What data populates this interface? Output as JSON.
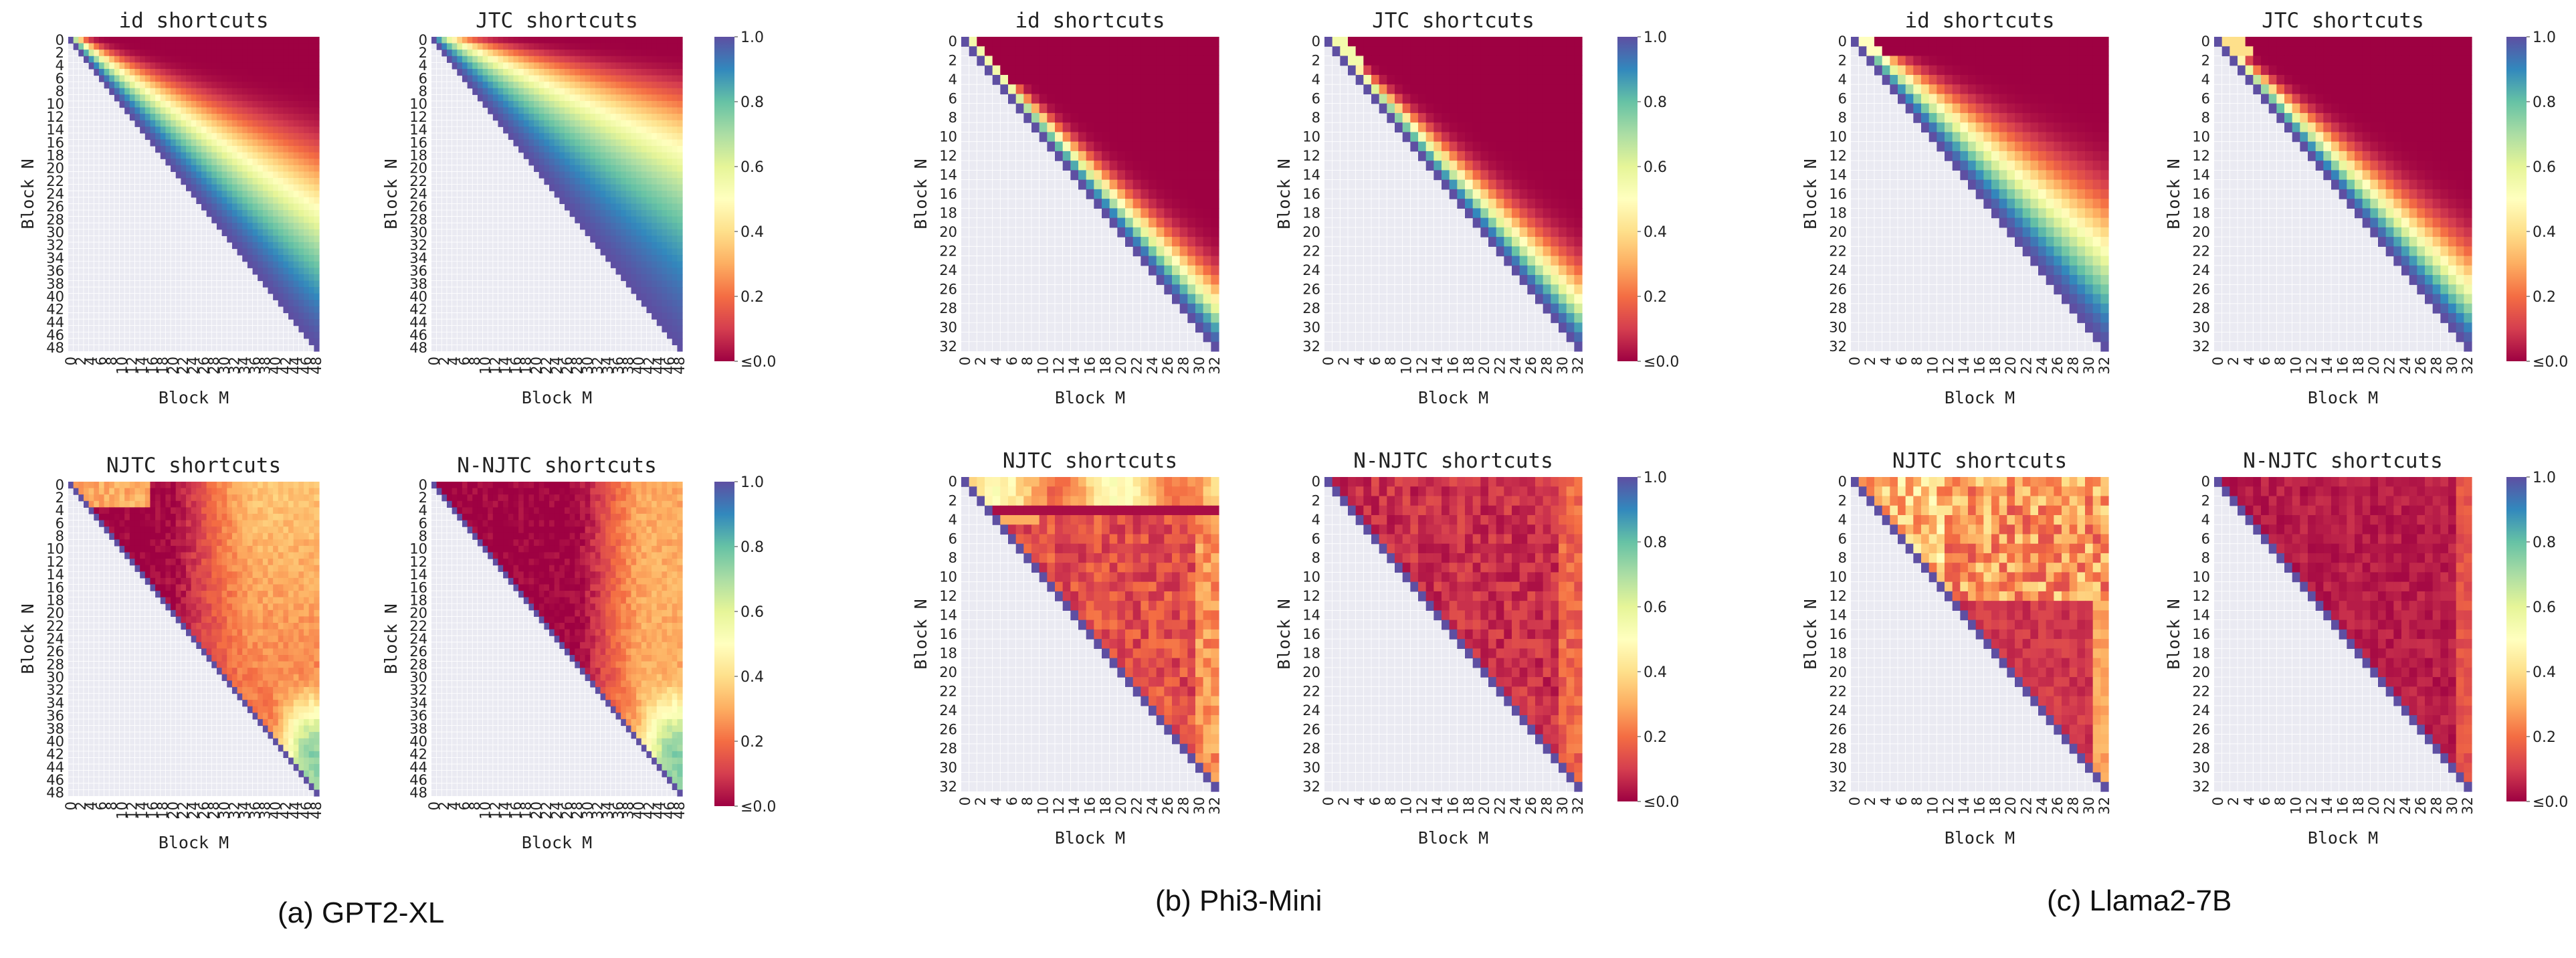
{
  "colors": {
    "scale": [
      "#9e0142",
      "#d53e4f",
      "#f46d43",
      "#fdae61",
      "#fee08b",
      "#ffffbf",
      "#e6f598",
      "#abdda4",
      "#66c2a5",
      "#3288bd",
      "#5e4fa2"
    ],
    "masked": "#eaeaf2",
    "gridline": "#ffffff"
  },
  "captions": {
    "gpt2": "(a) GPT2-XL",
    "phi3": "(b) Phi3-Mini",
    "llama": "(c) Llama2-7B"
  },
  "colorbar_ticks": [
    "1.0",
    "0.8",
    "0.6",
    "0.4",
    "0.2",
    "≤0.0"
  ],
  "chart_data": [
    {
      "type": "heatmap",
      "model": "GPT2-XL",
      "title": "id shortcuts",
      "xlabel": "Block M",
      "ylabel": "Block N",
      "n": 48,
      "x_range": [
        0,
        48
      ],
      "y_range": [
        0,
        48
      ],
      "tick_step": 2,
      "pattern": "id_wide",
      "value_range": [
        0,
        1
      ],
      "description": "upper-triangular shortcut score; 1.0 on diagonal, decaying to <=0 far from diagonal"
    },
    {
      "type": "heatmap",
      "model": "GPT2-XL",
      "title": "JTC shortcuts",
      "xlabel": "Block M",
      "ylabel": "Block N",
      "n": 48,
      "x_range": [
        0,
        48
      ],
      "y_range": [
        0,
        48
      ],
      "tick_step": 2,
      "pattern": "jtc_wide",
      "value_range": [
        0,
        1
      ]
    },
    {
      "type": "heatmap",
      "model": "GPT2-XL",
      "title": "NJTC shortcuts",
      "xlabel": "Block M",
      "ylabel": "Block N",
      "n": 48,
      "x_range": [
        0,
        48
      ],
      "y_range": [
        0,
        48
      ],
      "tick_step": 2,
      "pattern": "njtc_gpt",
      "value_range": [
        0,
        1
      ]
    },
    {
      "type": "heatmap",
      "model": "GPT2-XL",
      "title": "N-NJTC shortcuts",
      "xlabel": "Block M",
      "ylabel": "Block N",
      "n": 48,
      "x_range": [
        0,
        48
      ],
      "y_range": [
        0,
        48
      ],
      "tick_step": 2,
      "pattern": "nnjtc_gpt",
      "value_range": [
        0,
        1
      ]
    },
    {
      "type": "heatmap",
      "model": "Phi3-Mini",
      "title": "id shortcuts",
      "xlabel": "Block M",
      "ylabel": "Block N",
      "n": 32,
      "x_range": [
        0,
        32
      ],
      "y_range": [
        0,
        32
      ],
      "tick_step": 2,
      "pattern": "id_phi",
      "value_range": [
        0,
        1
      ]
    },
    {
      "type": "heatmap",
      "model": "Phi3-Mini",
      "title": "JTC shortcuts",
      "xlabel": "Block M",
      "ylabel": "Block N",
      "n": 32,
      "x_range": [
        0,
        32
      ],
      "y_range": [
        0,
        32
      ],
      "tick_step": 2,
      "pattern": "jtc_phi",
      "value_range": [
        0,
        1
      ]
    },
    {
      "type": "heatmap",
      "model": "Phi3-Mini",
      "title": "NJTC shortcuts",
      "xlabel": "Block M",
      "ylabel": "Block N",
      "n": 32,
      "x_range": [
        0,
        32
      ],
      "y_range": [
        0,
        32
      ],
      "tick_step": 2,
      "pattern": "njtc_phi",
      "value_range": [
        0,
        1
      ]
    },
    {
      "type": "heatmap",
      "model": "Phi3-Mini",
      "title": "N-NJTC shortcuts",
      "xlabel": "Block M",
      "ylabel": "Block N",
      "n": 32,
      "x_range": [
        0,
        32
      ],
      "y_range": [
        0,
        32
      ],
      "tick_step": 2,
      "pattern": "nnjtc_phi",
      "value_range": [
        0,
        1
      ]
    },
    {
      "type": "heatmap",
      "model": "Llama2-7B",
      "title": "id shortcuts",
      "xlabel": "Block M",
      "ylabel": "Block N",
      "n": 32,
      "x_range": [
        0,
        32
      ],
      "y_range": [
        0,
        32
      ],
      "tick_step": 2,
      "pattern": "id_llama",
      "value_range": [
        0,
        1
      ]
    },
    {
      "type": "heatmap",
      "model": "Llama2-7B",
      "title": "JTC shortcuts",
      "xlabel": "Block M",
      "ylabel": "Block N",
      "n": 32,
      "x_range": [
        0,
        32
      ],
      "y_range": [
        0,
        32
      ],
      "tick_step": 2,
      "pattern": "jtc_llama",
      "value_range": [
        0,
        1
      ]
    },
    {
      "type": "heatmap",
      "model": "Llama2-7B",
      "title": "NJTC shortcuts",
      "xlabel": "Block M",
      "ylabel": "Block N",
      "n": 32,
      "x_range": [
        0,
        32
      ],
      "y_range": [
        0,
        32
      ],
      "tick_step": 2,
      "pattern": "njtc_llama",
      "value_range": [
        0,
        1
      ]
    },
    {
      "type": "heatmap",
      "model": "Llama2-7B",
      "title": "N-NJTC shortcuts",
      "xlabel": "Block M",
      "ylabel": "Block N",
      "n": 32,
      "x_range": [
        0,
        32
      ],
      "y_range": [
        0,
        32
      ],
      "tick_step": 2,
      "pattern": "nnjtc_llama",
      "value_range": [
        0,
        1
      ]
    }
  ]
}
